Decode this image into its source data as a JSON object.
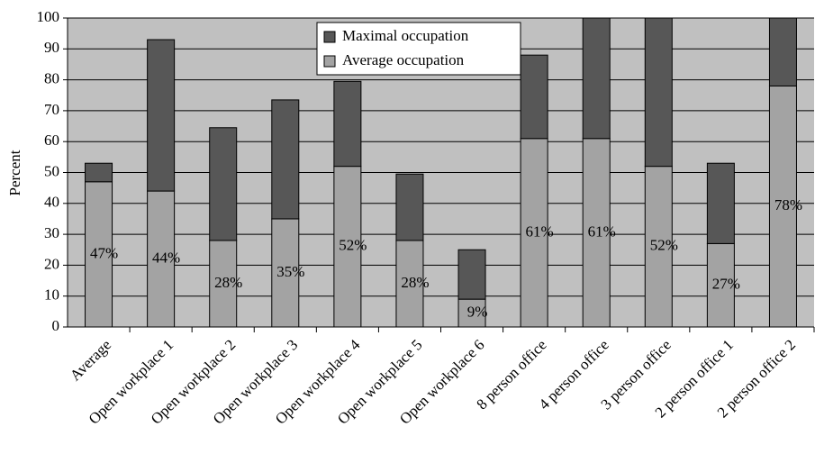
{
  "chart_data": {
    "type": "stacked-bar",
    "y_label": "Percent",
    "categories": [
      "Average",
      "Open workplace 1",
      "Open workplace 2",
      "Open workplace 3",
      "Open workplace 4",
      "Open workplace 5",
      "Open workplace 6",
      "8 person office",
      "4 person office",
      "3 person office",
      "2 person office 1",
      "2 person office 2"
    ],
    "series": [
      {
        "name": "Average occupation",
        "color": "#a3a3a3",
        "values": [
          47,
          44,
          28,
          35,
          52,
          28,
          9,
          61,
          61,
          52,
          27,
          78
        ],
        "value_labels": [
          "47%",
          "44%",
          "28%",
          "35%",
          "52%",
          "28%",
          "9%",
          "61%",
          "61%",
          "52%",
          "27%",
          "78%"
        ]
      },
      {
        "name": "Maximal occupation",
        "color": "#575757",
        "values": [
          6,
          49,
          36.5,
          38.5,
          27.5,
          21.5,
          16,
          27,
          39,
          48,
          26,
          22
        ]
      }
    ],
    "ylim": [
      0,
      100
    ],
    "yticks": [
      0,
      10,
      20,
      30,
      40,
      50,
      60,
      70,
      80,
      90,
      100
    ],
    "grid": true,
    "plot_background": "#c0c0c0"
  }
}
